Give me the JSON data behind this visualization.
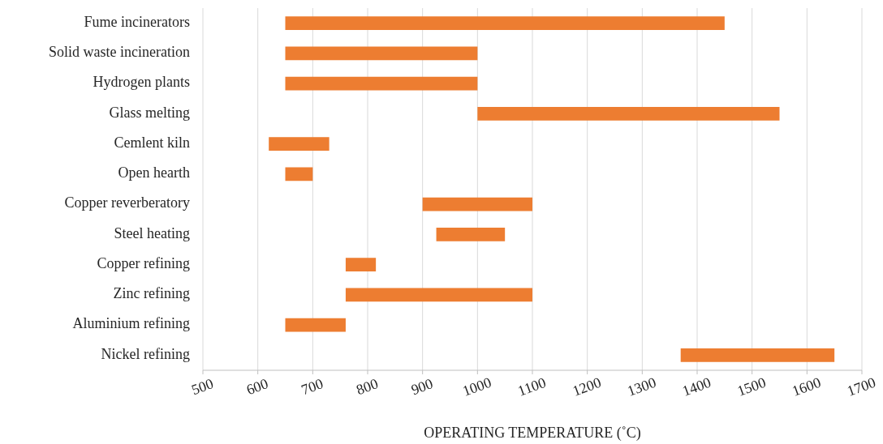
{
  "chart_data": {
    "type": "bar",
    "orientation": "horizontal",
    "xlabel": "OPERATING TEMPERATURE (˚C)",
    "categories": [
      "Fume incinerators",
      "Solid waste incineration",
      "Hydrogen plants",
      "Glass melting",
      "Cemlent kiln",
      "Open hearth",
      "Copper reverberatory",
      "Steel heating",
      "Copper refining",
      "Zinc refining",
      "Aluminium refining",
      "Nickel refining"
    ],
    "base": [
      650,
      650,
      650,
      1000,
      620,
      650,
      900,
      925,
      760,
      760,
      650,
      1370
    ],
    "values": [
      800,
      350,
      350,
      550,
      110,
      50,
      200,
      125,
      55,
      340,
      110,
      280
    ],
    "color": "#ed7d31",
    "xlim": [
      500,
      1700
    ],
    "xticks": [
      500,
      600,
      700,
      800,
      900,
      1000,
      1100,
      1200,
      1300,
      1400,
      1500,
      1600,
      1700
    ],
    "grid": "x"
  }
}
